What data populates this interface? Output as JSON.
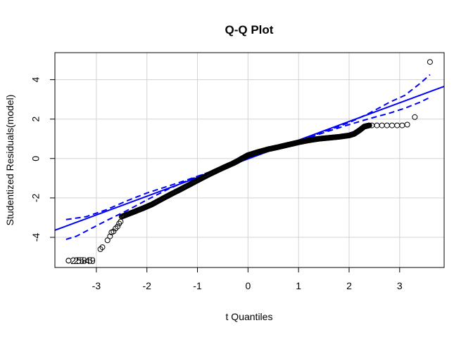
{
  "chart_data": {
    "type": "scatter",
    "title": "Q-Q Plot",
    "xlabel": "t Quantiles",
    "ylabel": "Studentized Residuals(model)",
    "xlim": [
      -3.82,
      3.88
    ],
    "ylim": [
      -5.53,
      5.37
    ],
    "xticks": [
      -3,
      -2,
      -1,
      0,
      1,
      2,
      3
    ],
    "yticks": [
      -4,
      -2,
      0,
      2,
      4
    ],
    "grid": true,
    "colors": {
      "reference": "#0000ff",
      "points": "#000000",
      "grid": "#d3d3d3"
    },
    "reference_line": {
      "x": [
        -3.82,
        3.88
      ],
      "y": [
        -3.64,
        3.66
      ]
    },
    "envelope_upper": {
      "x": [
        -3.6,
        -3.2,
        -2.8,
        -2.4,
        -2.0,
        -1.6,
        -1.2,
        -0.8,
        -0.4,
        0.0,
        0.4,
        0.8,
        1.2,
        1.6,
        2.0,
        2.4,
        2.8,
        3.1,
        3.4,
        3.6
      ],
      "y": [
        -3.1,
        -2.95,
        -2.6,
        -2.15,
        -1.75,
        -1.42,
        -1.08,
        -0.72,
        -0.37,
        0.0,
        0.36,
        0.72,
        1.08,
        1.45,
        1.82,
        2.3,
        2.85,
        3.2,
        3.8,
        4.25
      ]
    },
    "envelope_lower": {
      "x": [
        -3.6,
        -3.4,
        -3.1,
        -2.8,
        -2.4,
        -2.0,
        -1.6,
        -1.2,
        -0.8,
        -0.4,
        0.0,
        0.4,
        0.8,
        1.2,
        1.6,
        2.0,
        2.4,
        2.8,
        3.1,
        3.4,
        3.6
      ],
      "y": [
        -4.1,
        -3.95,
        -3.55,
        -3.15,
        -2.65,
        -2.1,
        -1.58,
        -1.12,
        -0.72,
        -0.36,
        0.0,
        0.36,
        0.7,
        1.05,
        1.4,
        1.72,
        2.02,
        2.3,
        2.55,
        2.85,
        3.1
      ]
    },
    "points_dense": {
      "x": [
        -2.5,
        -2.3,
        -2.1,
        -1.9,
        -1.7,
        -1.5,
        -1.3,
        -1.1,
        -0.9,
        -0.7,
        -0.5,
        -0.3,
        -0.2,
        -0.1,
        0.0,
        0.2,
        0.4,
        0.6,
        0.8,
        1.0,
        1.2,
        1.4,
        1.6,
        1.8,
        2.0,
        2.1,
        2.2,
        2.3,
        2.4
      ],
      "y": [
        -2.95,
        -2.75,
        -2.55,
        -2.33,
        -2.05,
        -1.78,
        -1.52,
        -1.25,
        -0.98,
        -0.72,
        -0.48,
        -0.25,
        -0.12,
        0.03,
        0.17,
        0.33,
        0.47,
        0.58,
        0.7,
        0.82,
        0.92,
        1.0,
        1.05,
        1.1,
        1.17,
        1.25,
        1.42,
        1.62,
        1.68
      ]
    },
    "points_sparse": {
      "x": [
        -2.92,
        -2.88,
        -2.78,
        -2.73,
        -2.7,
        -2.66,
        -2.62,
        -2.58,
        -2.55,
        -2.52,
        2.45,
        2.55,
        2.65,
        2.75,
        2.85,
        2.95,
        3.05,
        3.15,
        3.3,
        3.6
      ],
      "y": [
        -4.6,
        -4.5,
        -4.15,
        -3.95,
        -3.75,
        -3.7,
        -3.55,
        -3.45,
        -3.3,
        -3.2,
        1.68,
        1.68,
        1.68,
        1.68,
        1.68,
        1.68,
        1.68,
        1.72,
        2.1,
        4.9
      ]
    },
    "outlier_labels": {
      "x": [
        -3.51,
        -3.45
      ],
      "y": [
        -5.18,
        -5.18
      ],
      "labels": [
        "2585",
        "2549"
      ]
    }
  }
}
